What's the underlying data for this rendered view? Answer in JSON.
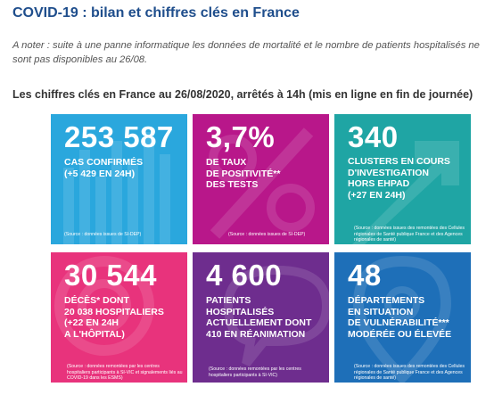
{
  "page": {
    "title": "COVID-19 : bilan et chiffres clés en France",
    "note": "A noter : suite à une panne informatique les données de mortalité et le nombre de patients hospitalisés ne sont pas disponibles au 26/08.",
    "subtitle": "Les chiffres clés en France au 26/08/2020, arrêtés à 14h (mis en ligne en fin de journée)"
  },
  "tiles": [
    {
      "value": "253 587",
      "label": "CAS CONFIRMÉS\n(+5 429 EN 24H)",
      "source": "(Source : données issues de SI-DEP)",
      "color": "#2aa7dd"
    },
    {
      "value": "3,7%",
      "label": "DE TAUX\nDE POSITIVITÉ**\nDES TESTS",
      "source": "(Source : données issues de SI-DEP)",
      "color": "#b8178a"
    },
    {
      "value": "340",
      "label": "CLUSTERS EN COURS\nD'INVESTIGATION\nHORS EHPAD\n(+27 EN 24H)",
      "source": "(Source : données issues des remontées des Cellules régionales de Santé publique France et des Agences régionales de santé)",
      "color": "#1fa5a4"
    },
    {
      "value": "30 544",
      "label": "DÉCÈS* DONT\n20 038 HOSPITALIERS\n(+22 EN 24H\nA L'HÔPITAL)",
      "source": "(Source : données remontées par les centres hospitaliers participants à SI-VIC et signalements liés au COVID-19 dans les ESMS)",
      "color": "#e8337c"
    },
    {
      "value": "4 600",
      "label": "PATIENTS\nHOSPITALISÉS\nACTUELLEMENT DONT\n410 EN RÉANIMATION",
      "source": "(Source : données remontées par les centres hospitaliers participants à SI-VIC)",
      "color": "#6e2d8e"
    },
    {
      "value": "48",
      "label": "DÉPARTEMENTS\nEN SITUATION\nDE VULNÉRABILITÉ***\nMODÉRÉE OU ÉLEVÉE",
      "source": "(Source : données issues des remontées des Cellules régionales de Santé publique France et des Agences régionales de santé)",
      "color": "#1e6fb8"
    }
  ]
}
